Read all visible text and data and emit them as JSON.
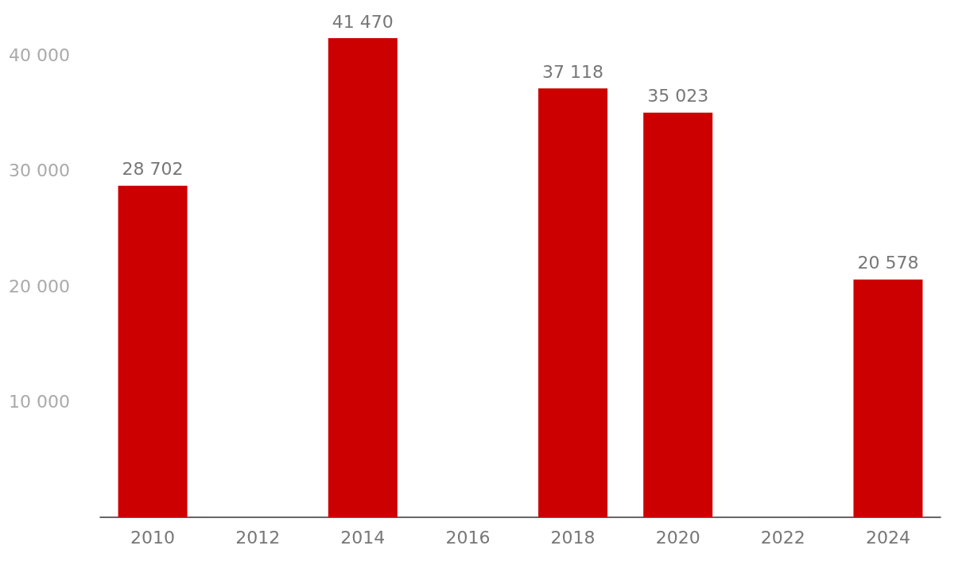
{
  "chart_data": {
    "type": "bar",
    "categories": [
      "2010",
      "2012",
      "2014",
      "2016",
      "2018",
      "2020",
      "2022",
      "2024"
    ],
    "values": [
      28702,
      null,
      41470,
      null,
      37118,
      35023,
      null,
      20578
    ],
    "value_labels": [
      "28 702",
      null,
      "41 470",
      null,
      "37 118",
      "35 023",
      null,
      "20 578"
    ],
    "color": "#cc0000",
    "ylim": [
      0,
      41470
    ],
    "yticks": [
      {
        "value": 0,
        "label": null
      },
      {
        "value": 10000,
        "label": "10 000"
      },
      {
        "value": 20000,
        "label": "20 000"
      },
      {
        "value": 30000,
        "label": "30 000"
      },
      {
        "value": 40000,
        "label": "40 000"
      }
    ],
    "grid": false
  }
}
